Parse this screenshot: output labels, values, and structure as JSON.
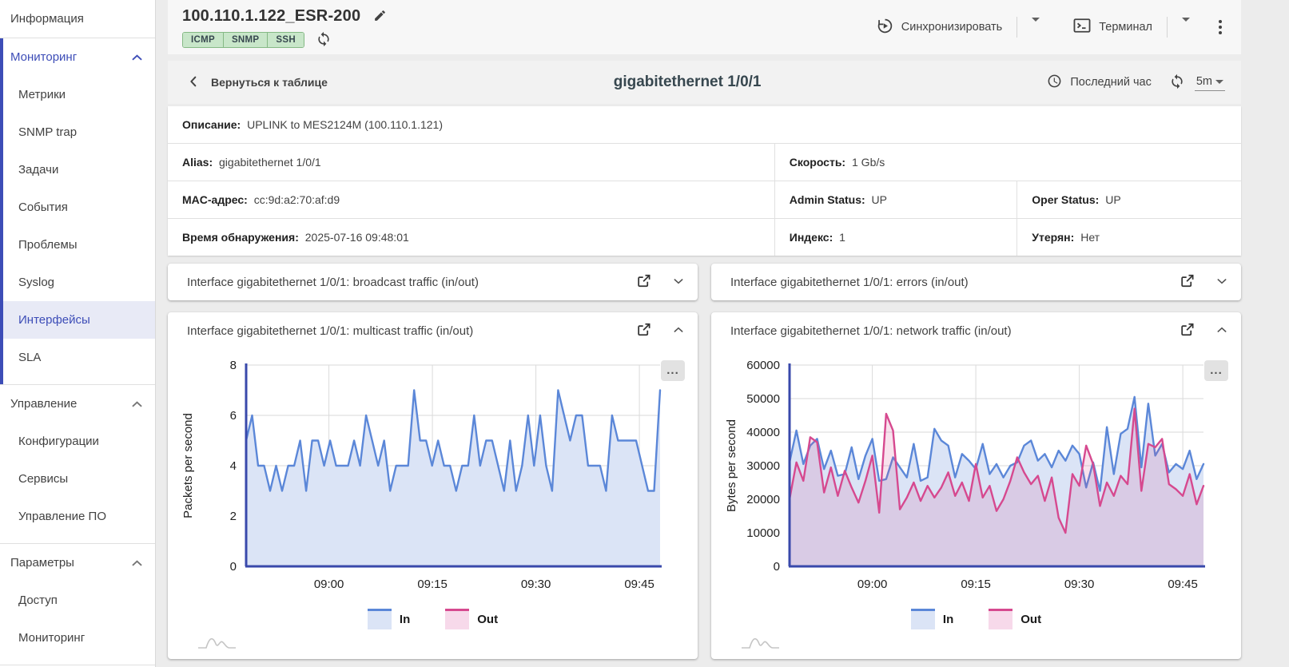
{
  "theme": {
    "accent_indigo": "#3d4db7",
    "badge_green": "#c8e6c9",
    "in_blue": "#5b87d8",
    "in_fill": "#dbe4f6",
    "out_pink": "#d6498f",
    "out_fill_legend": "#f7d9ea",
    "axis_navy": "#3949ab",
    "gridline": "#dadada"
  },
  "sidebar": {
    "sections": [
      {
        "items": [
          {
            "label": "Информация",
            "level": "top"
          }
        ]
      },
      {
        "header": "Мониторинг",
        "accent": true,
        "expanded": true,
        "items": [
          {
            "label": "Метрики"
          },
          {
            "label": "SNMP trap"
          },
          {
            "label": "Задачи"
          },
          {
            "label": "События"
          },
          {
            "label": "Проблемы"
          },
          {
            "label": "Syslog"
          },
          {
            "label": "Интерфейсы",
            "selected": true
          },
          {
            "label": "SLA"
          }
        ]
      },
      {
        "header": "Управление",
        "expanded": true,
        "items": [
          {
            "label": "Конфигурации"
          },
          {
            "label": "Сервисы"
          },
          {
            "label": "Управление ПО"
          }
        ]
      },
      {
        "header": "Параметры",
        "expanded": true,
        "items": [
          {
            "label": "Доступ"
          },
          {
            "label": "Мониторинг"
          }
        ]
      }
    ]
  },
  "header": {
    "device_title": "100.110.1.122_ESR-200",
    "badges": [
      "ICMP",
      "SNMP",
      "SSH"
    ],
    "sync_label": "Синхронизировать",
    "terminal_label": "Терминал"
  },
  "subheader": {
    "back_label": "Вернуться к таблице",
    "title": "gigabitethernet 1/0/1",
    "time_range_label": "Последний час",
    "interval_label": "5m"
  },
  "info": {
    "rows": [
      {
        "cells": [
          {
            "label": "Описание",
            "value": "UPLINK to MES2124M (100.110.1.121)",
            "span": 3
          }
        ]
      },
      {
        "cells": [
          {
            "label": "Alias",
            "value": "gigabitethernet 1/0/1",
            "span": 1
          },
          {
            "label": "Скорость",
            "value": "1 Gb/s",
            "span": 2
          }
        ]
      },
      {
        "cells": [
          {
            "label": "MAC-адрес",
            "value": "cc:9d:a2:70:af:d9",
            "span": 1
          },
          {
            "label": "Admin Status",
            "value": "UP",
            "span": 1
          },
          {
            "label": "Oper Status",
            "value": "UP",
            "span": 1
          }
        ]
      },
      {
        "cells": [
          {
            "label": "Время обнаружения",
            "value": "2025-07-16 09:48:01",
            "span": 1
          },
          {
            "label": "Индекс",
            "value": "1",
            "span": 1
          },
          {
            "label": "Утерян",
            "value": "Нет",
            "span": 1
          }
        ]
      }
    ]
  },
  "panels": [
    {
      "title": "Interface gigabitethernet 1/0/1: broadcast traffic (in/out)",
      "collapsed": true
    },
    {
      "title": "Interface gigabitethernet 1/0/1: errors (in/out)",
      "collapsed": true
    },
    {
      "title": "Interface gigabitethernet 1/0/1: multicast traffic (in/out)",
      "collapsed": false,
      "chart": 0
    },
    {
      "title": "Interface gigabitethernet 1/0/1: network traffic (in/out)",
      "collapsed": false,
      "chart": 1
    }
  ],
  "chart_data": [
    {
      "type": "area",
      "title": "Interface gigabitethernet 1/0/1: multicast traffic (in/out)",
      "ylabel": "Packets per second",
      "ylim": [
        0,
        8
      ],
      "yticks": [
        0,
        2,
        4,
        6,
        8
      ],
      "grid": true,
      "legend_position": "bottom",
      "xticks": [
        {
          "label": "09:00",
          "f": 0.2
        },
        {
          "label": "09:15",
          "f": 0.45
        },
        {
          "label": "09:30",
          "f": 0.7
        },
        {
          "label": "09:45",
          "f": 0.95
        }
      ],
      "series": [
        {
          "name": "In",
          "color": "#5b87d8",
          "fill": "#dbe4f6",
          "values": [
            5,
            6,
            4,
            4,
            3,
            4,
            3,
            4,
            4,
            5,
            3,
            5,
            5,
            4,
            5,
            4,
            4,
            4,
            5,
            4,
            6,
            5,
            4,
            5,
            3,
            4,
            4,
            4,
            7,
            5,
            5,
            4,
            5,
            4,
            4,
            3,
            4,
            4,
            6,
            4,
            5,
            5,
            4,
            3,
            5,
            3,
            4,
            6,
            4,
            6,
            4,
            3,
            7,
            6,
            5,
            6,
            6,
            4,
            4,
            4,
            3,
            6,
            5,
            5,
            5,
            5,
            4,
            3,
            3,
            7
          ]
        },
        {
          "name": "Out",
          "color": "#d6498f",
          "fill": "rgba(214,73,143,0.16)",
          "values": [
            0,
            0,
            0,
            0,
            0,
            0,
            0,
            0,
            0,
            0,
            0,
            0,
            0,
            0,
            0,
            0,
            0,
            0,
            0,
            0,
            0,
            0,
            0,
            0,
            0,
            0,
            0,
            0,
            0,
            0,
            0,
            0,
            0,
            0,
            0,
            0,
            0,
            0,
            0,
            0,
            0,
            0,
            0,
            0,
            0,
            0,
            0,
            0,
            0,
            0,
            0,
            0,
            0,
            0,
            0,
            0,
            0,
            0,
            0,
            0,
            0,
            0,
            0,
            0,
            0,
            0,
            0,
            0,
            0,
            0
          ]
        }
      ]
    },
    {
      "type": "area",
      "title": "Interface gigabitethernet 1/0/1: network traffic (in/out)",
      "ylabel": "Bytes per second",
      "ylim": [
        0,
        60000
      ],
      "yticks": [
        0,
        10000,
        20000,
        30000,
        40000,
        50000,
        60000
      ],
      "grid": true,
      "legend_position": "bottom",
      "xticks": [
        {
          "label": "09:00",
          "f": 0.2
        },
        {
          "label": "09:15",
          "f": 0.45
        },
        {
          "label": "09:30",
          "f": 0.7
        },
        {
          "label": "09:45",
          "f": 0.95
        }
      ],
      "series": [
        {
          "name": "In",
          "color": "#5b87d8",
          "fill": "#dbe4f6",
          "values": [
            31000,
            40500,
            30500,
            36000,
            38000,
            29000,
            34500,
            27000,
            27500,
            35500,
            26000,
            33000,
            38000,
            25500,
            26000,
            32500,
            29500,
            26500,
            36500,
            25500,
            26500,
            41000,
            37500,
            36000,
            26500,
            33500,
            31500,
            29000,
            36500,
            27500,
            30500,
            26500,
            30000,
            31000,
            36000,
            37500,
            31500,
            33500,
            29500,
            34500,
            31500,
            36000,
            33500,
            23500,
            31000,
            22500,
            41500,
            27500,
            39500,
            41000,
            50500,
            29500,
            48500,
            33000,
            36500,
            28000,
            30500,
            29000,
            34500,
            26000,
            30500
          ]
        },
        {
          "name": "Out",
          "color": "#d6498f",
          "fill": "rgba(214,73,143,0.16)",
          "values": [
            20000,
            31000,
            25500,
            38500,
            37000,
            22000,
            29500,
            21000,
            28500,
            23500,
            19000,
            25500,
            33000,
            16000,
            45500,
            40500,
            17000,
            20500,
            25000,
            19500,
            24000,
            20500,
            23500,
            28000,
            21000,
            25000,
            19500,
            30500,
            20500,
            24000,
            16500,
            20000,
            25500,
            32500,
            28000,
            24500,
            27000,
            19500,
            26500,
            14500,
            10000,
            27500,
            24000,
            36000,
            30500,
            18000,
            25000,
            21000,
            27000,
            24500,
            47000,
            22500,
            36500,
            35500,
            38000,
            24500,
            23000,
            21000,
            27500,
            18500,
            24000
          ]
        }
      ]
    }
  ]
}
